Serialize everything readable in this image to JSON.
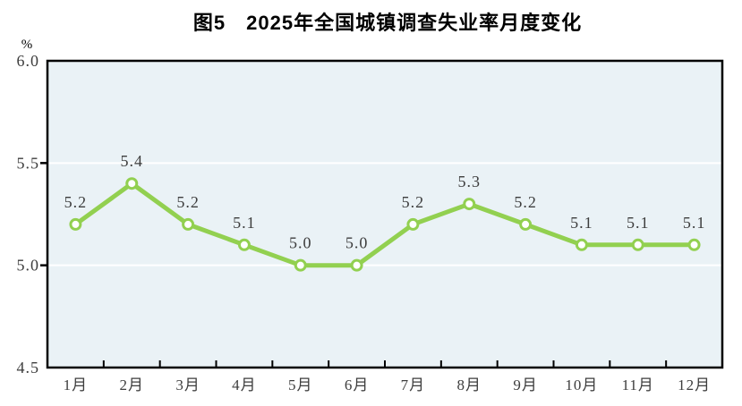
{
  "figure": {
    "title": "图5　2025年全国城镇调查失业率月度变化",
    "y_axis_unit": "%"
  },
  "colors": {
    "line": "#92d050",
    "marker_fill": "#ffffff",
    "plot_background": "#eaf2f6",
    "gridline": "#ffffff",
    "axis": "#000000",
    "label_text": "#3d3d3d"
  },
  "chart_data": {
    "type": "line",
    "title": "图5　2025年全国城镇调查失业率月度变化",
    "ylabel": "%",
    "categories": [
      "1月",
      "2月",
      "3月",
      "4月",
      "5月",
      "6月",
      "7月",
      "8月",
      "9月",
      "10月",
      "11月",
      "12月"
    ],
    "values": [
      5.2,
      5.4,
      5.2,
      5.1,
      5.0,
      5.0,
      5.2,
      5.3,
      5.2,
      5.1,
      5.1,
      5.1
    ],
    "data_labels": [
      "5.2",
      "5.4",
      "5.2",
      "5.1",
      "5.0",
      "5.0",
      "5.2",
      "5.3",
      "5.2",
      "5.1",
      "5.1",
      "5.1"
    ],
    "ylim": [
      4.5,
      6.0
    ],
    "yticks": [
      6.0,
      5.5,
      5.0,
      4.5
    ],
    "ytick_labels": [
      "6.0",
      "5.5",
      "5.0",
      "4.5"
    ],
    "grid": "horizontal-white-lines-at-5.0-and-5.5",
    "legend": "none",
    "marker": "open-circle"
  }
}
